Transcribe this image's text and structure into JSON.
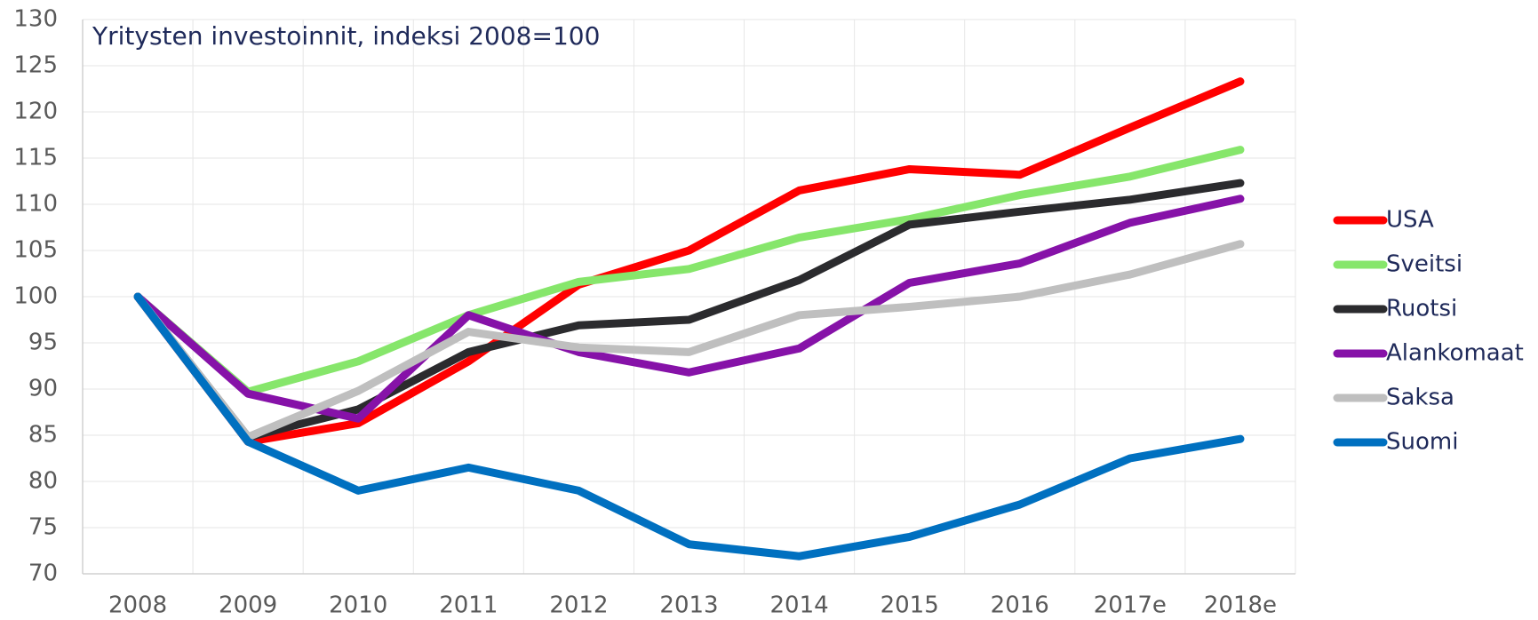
{
  "chart_data": {
    "type": "line",
    "title": "Yritysten investoinnit, indeksi 2008=100",
    "categories": [
      "2008",
      "2009",
      "2010",
      "2011",
      "2012",
      "2013",
      "2014",
      "2015",
      "2016",
      "2017e",
      "2018e"
    ],
    "series": [
      {
        "name": "USA",
        "color": "#ff0000",
        "values": [
          100,
          84.3,
          86.3,
          93,
          101.3,
          105,
          111.5,
          113.8,
          113.2,
          118.3,
          123.3
        ]
      },
      {
        "name": "Sveitsi",
        "color": "#86e66b",
        "values": [
          100,
          89.7,
          93,
          98,
          101.6,
          103,
          106.4,
          108.4,
          111,
          113,
          115.9
        ]
      },
      {
        "name": "Ruotsi",
        "color": "#2b2b2e",
        "values": [
          100,
          84.8,
          87.8,
          94,
          96.9,
          97.5,
          101.8,
          107.8,
          109.2,
          110.5,
          112.3
        ]
      },
      {
        "name": "Alankomaat",
        "color": "#8612a8",
        "values": [
          100,
          89.5,
          86.8,
          98,
          94,
          91.8,
          94.4,
          101.5,
          103.6,
          108,
          110.6
        ]
      },
      {
        "name": "Saksa",
        "color": "#bfbfbf",
        "values": [
          100,
          84.8,
          89.8,
          96.2,
          94.5,
          94,
          98,
          98.9,
          100,
          102.4,
          105.7
        ]
      },
      {
        "name": "Suomi",
        "color": "#0070c0",
        "values": [
          100,
          84.3,
          79,
          81.5,
          79,
          73.2,
          71.9,
          74,
          77.5,
          82.5,
          84.6
        ]
      }
    ],
    "ylim": [
      70,
      130
    ],
    "yticks": [
      70,
      75,
      80,
      85,
      90,
      95,
      100,
      105,
      110,
      115,
      120,
      125,
      130
    ],
    "grid": true,
    "legend": "right"
  }
}
